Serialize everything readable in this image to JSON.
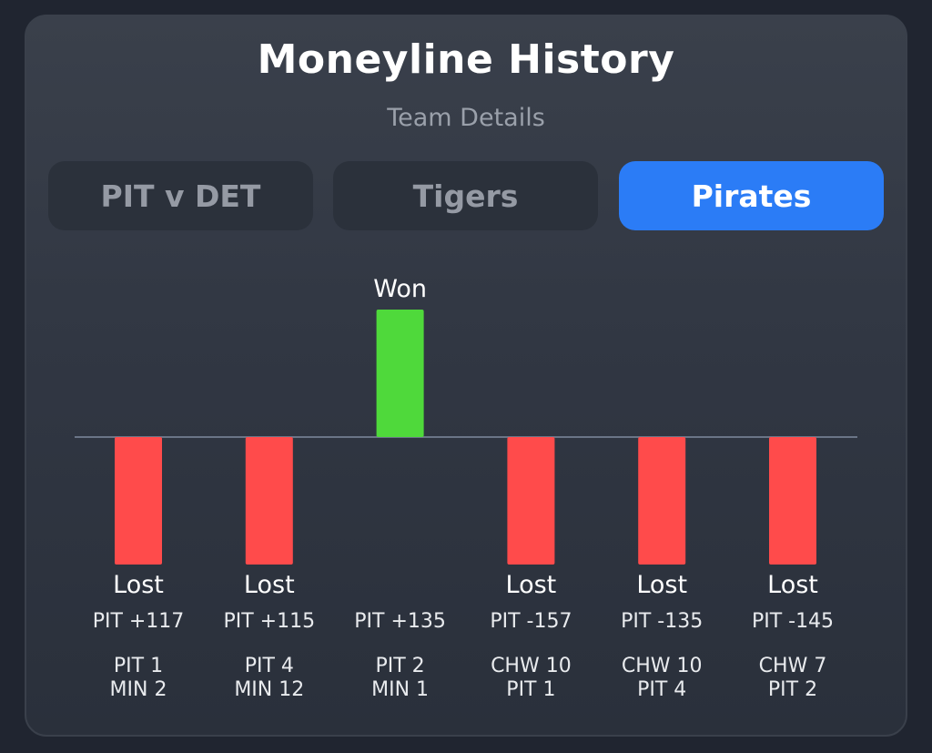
{
  "header": {
    "title": "Moneyline History",
    "subtitle": "Team Details"
  },
  "tabs": [
    {
      "label": "PIT v DET",
      "active": false
    },
    {
      "label": "Tigers",
      "active": false
    },
    {
      "label": "Pirates",
      "active": true
    }
  ],
  "colors": {
    "won": "#4fd93b",
    "lost": "#ff4b4b",
    "accent": "#2b7cf6",
    "baseline": "#6b7587"
  },
  "chart_data": {
    "type": "bar",
    "games": [
      {
        "result": "Lost",
        "odds": "PIT +117",
        "score_line1": "PIT 1",
        "score_line2": "MIN 2"
      },
      {
        "result": "Lost",
        "odds": "PIT +115",
        "score_line1": "PIT 4",
        "score_line2": "MIN 12"
      },
      {
        "result": "Won",
        "odds": "PIT +135",
        "score_line1": "PIT 2",
        "score_line2": "MIN 1"
      },
      {
        "result": "Lost",
        "odds": "PIT -157",
        "score_line1": "CHW 10",
        "score_line2": "PIT 1"
      },
      {
        "result": "Lost",
        "odds": "PIT -135",
        "score_line1": "CHW 10",
        "score_line2": "PIT 4"
      },
      {
        "result": "Lost",
        "odds": "PIT -145",
        "score_line1": "CHW 7",
        "score_line2": "PIT 2"
      }
    ]
  }
}
